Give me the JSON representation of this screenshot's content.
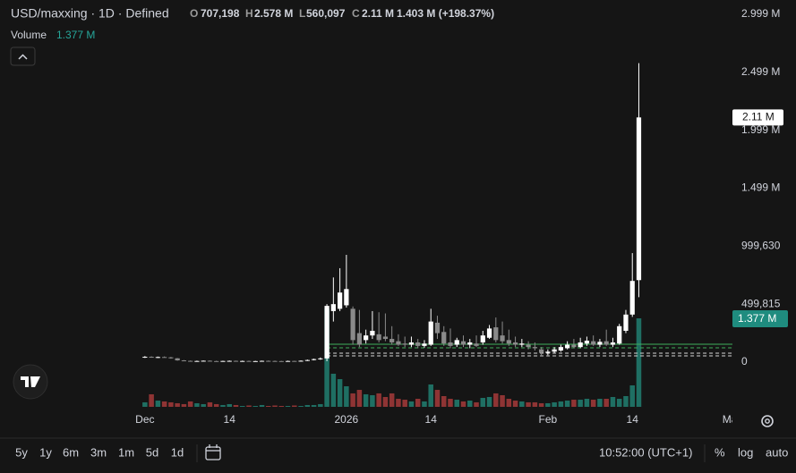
{
  "header": {
    "symbol": "USD/maxxing · 1D · Defined",
    "o_label": "O",
    "open": "707,198",
    "h_label": "H",
    "high": "2.578 M",
    "l_label": "L",
    "low": "560,097",
    "c_label": "C",
    "close": "2.11 M",
    "change": "1.403 M (+198.37%)",
    "volume_label": "Volume",
    "volume": "1.377 M"
  },
  "toolbar": {
    "ranges": [
      "5y",
      "1y",
      "6m",
      "3m",
      "1m",
      "5d",
      "1d"
    ],
    "time": "10:52:00 (UTC+1)",
    "percent": "%",
    "log": "log",
    "auto": "auto"
  },
  "chart_data": {
    "type": "candlestick",
    "up_color": "#ffffff",
    "down_color": "#8a8a8a",
    "volume_up_color": "#1f6f63",
    "volume_down_color": "#8f3434",
    "grid": false,
    "xlim": [
      -22.3,
      90.4
    ],
    "xticks": [
      {
        "value": 0,
        "label": "Dec"
      },
      {
        "value": 13,
        "label": "14"
      },
      {
        "value": 31,
        "label": "2026"
      },
      {
        "value": 44,
        "label": "14"
      },
      {
        "value": 62,
        "label": "Feb"
      },
      {
        "value": 75,
        "label": "14"
      },
      {
        "value": 90,
        "label": "Ma"
      }
    ],
    "ylim": [
      -385500,
      3122500
    ],
    "yticks": [
      0,
      {
        "value": 499815,
        "label": "499,815"
      },
      {
        "value": 999630,
        "label": "999,630"
      },
      {
        "value": 1499445,
        "label": "1.499 M"
      },
      {
        "value": 1999260,
        "label": "1.999 M"
      },
      {
        "value": 2499075,
        "label": "2.499 M"
      },
      {
        "value": 2998890,
        "label": "2.999 M"
      }
    ],
    "volume_ylim": [
      0,
      6330000
    ],
    "open": [
      42000,
      46000,
      40000,
      44000,
      41000,
      33000,
      15000,
      11000,
      9000,
      10000,
      12000,
      9000,
      8000,
      10000,
      11000,
      9000,
      10000,
      8000,
      9000,
      11000,
      10000,
      9000,
      8000,
      10000,
      9000,
      12000,
      18000,
      26000,
      32000,
      440000,
      460000,
      490000,
      460000,
      250000,
      190000,
      230000,
      240000,
      220000,
      200000,
      180000,
      160000,
      150000,
      170000,
      140000,
      150000,
      340000,
      260000,
      170000,
      150000,
      180000,
      150000,
      160000,
      170000,
      210000,
      300000,
      230000,
      190000,
      170000,
      150000,
      150000,
      130000,
      110000,
      80000,
      90000,
      100000,
      120000,
      150000,
      130000,
      160000,
      180000,
      150000,
      180000,
      150000,
      160000,
      270000,
      410000,
      707198
    ],
    "high": [
      52000,
      50000,
      48000,
      49000,
      45000,
      35000,
      18000,
      14000,
      13000,
      14000,
      15000,
      12000,
      12000,
      14000,
      13000,
      13000,
      13000,
      11000,
      13000,
      14000,
      13000,
      11000,
      13000,
      12000,
      15000,
      22000,
      30000,
      40000,
      500000,
      730000,
      810000,
      925000,
      480000,
      450000,
      280000,
      440000,
      430000,
      420000,
      310000,
      240000,
      220000,
      220000,
      200000,
      190000,
      460000,
      400000,
      310000,
      290000,
      210000,
      230000,
      200000,
      230000,
      270000,
      320000,
      385000,
      350000,
      280000,
      220000,
      200000,
      180000,
      170000,
      130000,
      110000,
      130000,
      150000,
      180000,
      200000,
      210000,
      220000,
      230000,
      200000,
      280000,
      210000,
      330000,
      450000,
      940000,
      2578000
    ],
    "low": [
      36000,
      38000,
      35000,
      39000,
      30000,
      12000,
      9000,
      7000,
      6000,
      8000,
      7000,
      6000,
      6000,
      8000,
      7000,
      7000,
      6000,
      6000,
      7000,
      8000,
      7000,
      6000,
      6000,
      7000,
      7000,
      10000,
      15000,
      20000,
      8000,
      350000,
      440000,
      470000,
      150000,
      130000,
      160000,
      200000,
      170000,
      180000,
      150000,
      140000,
      130000,
      130000,
      120000,
      125000,
      140000,
      200000,
      140000,
      120000,
      130000,
      130000,
      120000,
      130000,
      150000,
      200000,
      170000,
      160000,
      140000,
      130000,
      130000,
      110000,
      100000,
      60000,
      60000,
      80000,
      90000,
      110000,
      120000,
      120000,
      140000,
      140000,
      130000,
      140000,
      130000,
      150000,
      250000,
      390000,
      560097
    ],
    "close": [
      46000,
      40000,
      44000,
      41000,
      33000,
      15000,
      11000,
      9000,
      10000,
      12000,
      9000,
      8000,
      10000,
      11000,
      9000,
      10000,
      8000,
      9000,
      11000,
      10000,
      9000,
      8000,
      10000,
      9000,
      12000,
      18000,
      26000,
      32000,
      485000,
      500000,
      600000,
      630000,
      190000,
      150000,
      230000,
      270000,
      190000,
      200000,
      170000,
      150000,
      150000,
      170000,
      140000,
      160000,
      350000,
      250000,
      160000,
      140000,
      190000,
      150000,
      170000,
      140000,
      230000,
      290000,
      190000,
      180000,
      160000,
      150000,
      160000,
      130000,
      120000,
      80000,
      90000,
      110000,
      130000,
      150000,
      130000,
      170000,
      185000,
      150000,
      175000,
      150000,
      170000,
      310000,
      410000,
      700000,
      2110000
    ],
    "volume": [
      70000,
      195000,
      97000,
      84000,
      70000,
      56000,
      42000,
      84000,
      56000,
      42000,
      70000,
      42000,
      28000,
      42000,
      28000,
      14000,
      21000,
      14000,
      28000,
      14000,
      21000,
      14000,
      14000,
      21000,
      14000,
      28000,
      28000,
      42000,
      1530000,
      515000,
      431000,
      320000,
      209000,
      264000,
      195000,
      181000,
      209000,
      153000,
      209000,
      125000,
      111000,
      84000,
      125000,
      84000,
      348000,
      264000,
      167000,
      125000,
      111000,
      84000,
      97000,
      70000,
      139000,
      153000,
      209000,
      181000,
      125000,
      97000,
      84000,
      70000,
      70000,
      56000,
      56000,
      70000,
      84000,
      97000,
      111000,
      111000,
      125000,
      111000,
      125000,
      125000,
      153000,
      125000,
      167000,
      334000,
      1377000
    ],
    "price_lines": [
      {
        "value": 154000,
        "color": "#3fae5a",
        "dash": false,
        "start": 28
      },
      {
        "value": 123000,
        "color": "#3fae5a",
        "dash": true,
        "start": 28
      },
      {
        "value": 77000,
        "color": "#d8d8d8",
        "dash": true,
        "start": 28
      },
      {
        "value": 54000,
        "color": "#d8d8d8",
        "dash": true,
        "start": 28
      }
    ]
  }
}
